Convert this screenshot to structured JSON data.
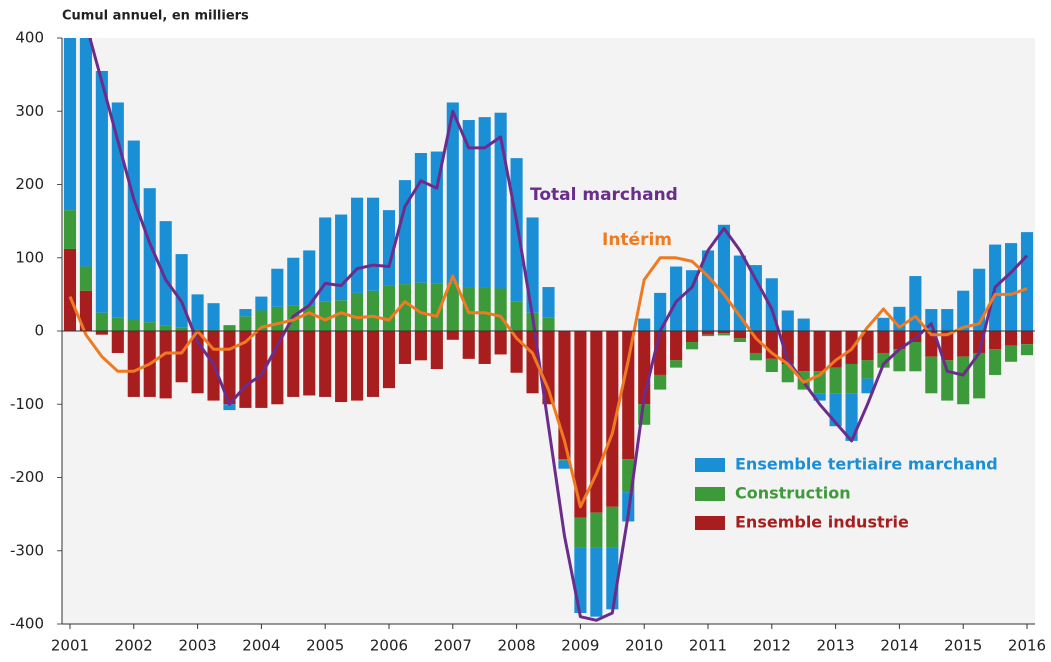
{
  "chart_data": {
    "type": "bar",
    "title": "Cumul annuel, en milliers",
    "categories": [
      "2001",
      null,
      null,
      null,
      "2002",
      null,
      null,
      null,
      "2003",
      null,
      null,
      null,
      "2004",
      null,
      null,
      null,
      "2005",
      null,
      null,
      null,
      "2006",
      null,
      null,
      null,
      "2007",
      null,
      null,
      null,
      "2008",
      null,
      null,
      null,
      "2009",
      null,
      null,
      null,
      "2010",
      null,
      null,
      null,
      "2011",
      null,
      null,
      null,
      "2012",
      null,
      null,
      null,
      "2013",
      null,
      null,
      null,
      "2014",
      null,
      null,
      null,
      "2015",
      null,
      null,
      null,
      "2016"
    ],
    "ylim": [
      -400,
      400
    ],
    "yticks": [
      -400,
      -300,
      -200,
      -100,
      0,
      100,
      200,
      300,
      400
    ],
    "stacked": true,
    "series": [
      {
        "name": "Ensemble tertiaire marchand",
        "color": "#1b8fd6",
        "values": [
          235,
          312,
          330,
          294,
          245,
          183,
          142,
          100,
          48,
          36,
          -8,
          10,
          19,
          52,
          65,
          75,
          115,
          117,
          130,
          127,
          103,
          142,
          177,
          180,
          247,
          228,
          232,
          240,
          196,
          130,
          42,
          -11,
          -90,
          -95,
          -85,
          -40,
          17,
          52,
          88,
          83,
          110,
          145,
          103,
          90,
          72,
          28,
          17,
          -10,
          -45,
          -65,
          -20,
          18,
          33,
          75,
          30,
          30,
          55,
          85,
          118,
          120,
          135
        ]
      },
      {
        "name": "Construction",
        "color": "#3c9a3a",
        "values": [
          53,
          33,
          25,
          18,
          15,
          12,
          8,
          5,
          2,
          2,
          8,
          20,
          28,
          33,
          35,
          35,
          40,
          42,
          52,
          55,
          62,
          64,
          66,
          65,
          65,
          60,
          60,
          58,
          40,
          25,
          18,
          -2,
          -40,
          -47,
          -55,
          -45,
          -28,
          -20,
          -10,
          -10,
          -2,
          -3,
          -5,
          -10,
          -18,
          -25,
          -25,
          -30,
          -35,
          -40,
          -25,
          -20,
          -30,
          -40,
          -50,
          -55,
          -65,
          -62,
          -35,
          -22,
          -15
        ]
      },
      {
        "name": "Ensemble industrie",
        "color": "#a81d1d",
        "values": [
          112,
          55,
          -5,
          -30,
          -90,
          -90,
          -92,
          -70,
          -85,
          -95,
          -100,
          -105,
          -105,
          -100,
          -90,
          -88,
          -90,
          -97,
          -95,
          -90,
          -78,
          -45,
          -40,
          -52,
          -12,
          -38,
          -45,
          -32,
          -57,
          -85,
          -100,
          -175,
          -255,
          -248,
          -240,
          -175,
          -100,
          -60,
          -40,
          -15,
          -5,
          -3,
          -10,
          -30,
          -38,
          -45,
          -55,
          -55,
          -50,
          -45,
          -40,
          -30,
          -25,
          -15,
          -35,
          -40,
          -35,
          -30,
          -25,
          -20,
          -18
        ]
      }
    ],
    "lines": [
      {
        "name": "Total marchand",
        "color": "#6b2c8c",
        "values": [
          450,
          420,
          340,
          260,
          180,
          120,
          70,
          40,
          -15,
          -45,
          -100,
          -75,
          -60,
          -20,
          20,
          35,
          65,
          62,
          85,
          90,
          88,
          170,
          205,
          195,
          300,
          250,
          250,
          265,
          150,
          20,
          -130,
          -280,
          -390,
          -395,
          -385,
          -250,
          -90,
          0,
          40,
          60,
          110,
          140,
          110,
          70,
          30,
          -40,
          -70,
          -100,
          -125,
          -150,
          -100,
          -45,
          -25,
          -10,
          10,
          -55,
          -60,
          -30,
          60,
          80,
          103
        ]
      },
      {
        "name": "Intérim",
        "color": "#f07a22",
        "values": [
          47,
          -5,
          -35,
          -55,
          -55,
          -45,
          -30,
          -30,
          0,
          -25,
          -25,
          -15,
          5,
          10,
          15,
          25,
          15,
          25,
          18,
          20,
          15,
          40,
          25,
          20,
          75,
          25,
          25,
          20,
          -10,
          -30,
          -80,
          -150,
          -240,
          -195,
          -140,
          -40,
          70,
          100,
          100,
          95,
          75,
          50,
          20,
          -10,
          -30,
          -45,
          -70,
          -60,
          -40,
          -25,
          5,
          30,
          5,
          20,
          -5,
          -5,
          5,
          10,
          50,
          50,
          58
        ]
      }
    ]
  }
}
